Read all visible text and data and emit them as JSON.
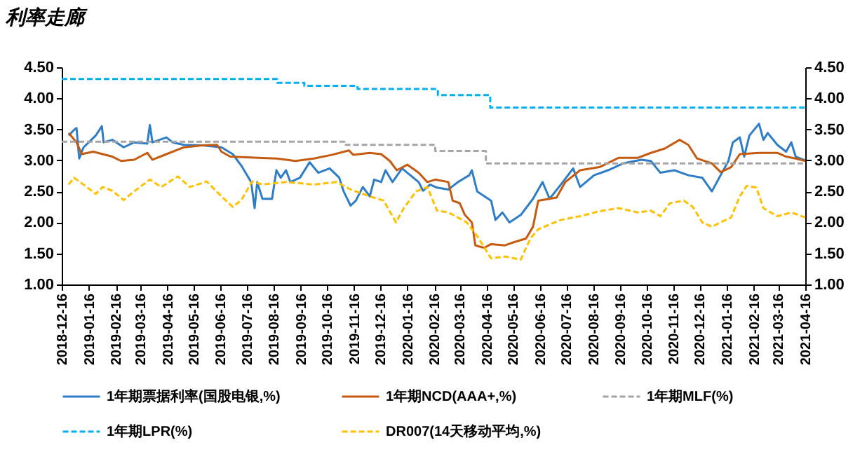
{
  "chart_data": {
    "type": "line",
    "title": "利率走廊",
    "legend": "bottom",
    "grid": false,
    "xlim": [
      "2018-12-16",
      "2021-04-16"
    ],
    "xticks": [
      "2018-12-16",
      "2019-01-16",
      "2019-02-16",
      "2019-03-16",
      "2019-04-16",
      "2019-05-16",
      "2019-06-16",
      "2019-07-16",
      "2019-08-16",
      "2019-09-16",
      "2019-10-16",
      "2019-11-16",
      "2019-12-16",
      "2020-01-16",
      "2020-02-16",
      "2020-03-16",
      "2020-04-16",
      "2020-05-16",
      "2020-06-16",
      "2020-07-16",
      "2020-08-16",
      "2020-09-16",
      "2020-10-16",
      "2020-11-16",
      "2020-12-16",
      "2021-01-16",
      "2021-02-16",
      "2021-03-16",
      "2021-04-16"
    ],
    "ylim": [
      1,
      4.5
    ],
    "yticks": [
      {
        "value": 1,
        "label": "1.00"
      },
      {
        "value": 1.5,
        "label": "1.50"
      },
      {
        "value": 2,
        "label": "2.00"
      },
      {
        "value": 2.5,
        "label": "2.50"
      },
      {
        "value": 3,
        "label": "3.00"
      },
      {
        "value": 3.5,
        "label": "3.50"
      },
      {
        "value": 4,
        "label": "4.00"
      },
      {
        "value": 4.5,
        "label": "4.50"
      }
    ],
    "y2lim": [
      1,
      4.5
    ],
    "y2ticks": [
      {
        "value": 1,
        "label": "1.00"
      },
      {
        "value": 1.5,
        "label": "1.50"
      },
      {
        "value": 2,
        "label": "2.00"
      },
      {
        "value": 2.5,
        "label": "2.50"
      },
      {
        "value": 3,
        "label": "3.00"
      },
      {
        "value": 3.5,
        "label": "3.50"
      },
      {
        "value": 4,
        "label": "4.00"
      },
      {
        "value": 4.5,
        "label": "4.50"
      }
    ],
    "series": [
      {
        "name": "1年期票据利率(国股电银,%)",
        "color": "#2e7dc6",
        "type": "line",
        "line_style": "solid",
        "x": [
          "2018-12-24",
          "2018-12-30",
          "2019-01-02",
          "2019-01-05",
          "2019-01-10",
          "2019-01-16",
          "2019-01-24",
          "2019-01-31",
          "2019-02-02",
          "2019-02-12",
          "2019-02-25",
          "2019-03-09",
          "2019-03-24",
          "2019-03-27",
          "2019-03-30",
          "2019-04-15",
          "2019-04-22",
          "2019-05-05",
          "2019-05-26",
          "2019-06-17",
          "2019-06-30",
          "2019-07-10",
          "2019-07-21",
          "2019-07-25",
          "2019-07-28",
          "2019-08-03",
          "2019-08-14",
          "2019-08-19",
          "2019-08-24",
          "2019-08-30",
          "2019-09-04",
          "2019-09-15",
          "2019-09-26",
          "2019-10-06",
          "2019-10-19",
          "2019-10-30",
          "2019-11-04",
          "2019-11-12",
          "2019-11-18",
          "2019-11-26",
          "2019-12-04",
          "2019-12-09",
          "2019-12-17",
          "2019-12-22",
          "2019-12-30",
          "2020-01-10",
          "2020-01-16",
          "2020-01-29",
          "2020-02-03",
          "2020-02-11",
          "2020-02-19",
          "2020-03-03",
          "2020-03-14",
          "2020-03-27",
          "2020-03-30",
          "2020-04-05",
          "2020-04-21",
          "2020-04-26",
          "2020-05-04",
          "2020-05-12",
          "2020-05-25",
          "2020-06-08",
          "2020-06-19",
          "2020-06-27",
          "2020-07-10",
          "2020-07-24",
          "2020-08-01",
          "2020-08-17",
          "2020-09-02",
          "2020-09-19",
          "2020-10-10",
          "2020-10-21",
          "2020-11-01",
          "2020-11-17",
          "2020-12-03",
          "2020-12-19",
          "2020-12-30",
          "2021-01-09",
          "2021-01-18",
          "2021-01-23",
          "2021-01-31",
          "2021-02-05",
          "2021-02-11",
          "2021-02-22",
          "2021-02-27",
          "2021-03-04",
          "2021-03-15",
          "2021-03-25",
          "2021-03-31",
          "2021-04-05",
          "2021-04-16"
        ],
        "values": [
          3.4,
          3.49,
          3.52,
          3.03,
          3.21,
          3.29,
          3.4,
          3.55,
          3.29,
          3.33,
          3.21,
          3.29,
          3.27,
          3.57,
          3.29,
          3.37,
          3.29,
          3.25,
          3.24,
          3.21,
          3.1,
          2.91,
          2.65,
          2.23,
          2.65,
          2.38,
          2.38,
          2.84,
          2.72,
          2.84,
          2.65,
          2.72,
          2.97,
          2.8,
          2.87,
          2.72,
          2.5,
          2.27,
          2.35,
          2.57,
          2.42,
          2.69,
          2.65,
          2.84,
          2.65,
          2.87,
          2.8,
          2.65,
          2.51,
          2.61,
          2.56,
          2.53,
          2.65,
          2.76,
          2.84,
          2.5,
          2.35,
          2.04,
          2.16,
          2.0,
          2.12,
          2.38,
          2.65,
          2.38,
          2.61,
          2.87,
          2.57,
          2.76,
          2.84,
          2.95,
          3.01,
          2.99,
          2.8,
          2.84,
          2.76,
          2.72,
          2.5,
          2.76,
          2.99,
          3.29,
          3.37,
          3.06,
          3.4,
          3.59,
          3.33,
          3.44,
          3.25,
          3.14,
          3.29,
          3.06,
          3.0
        ]
      },
      {
        "name": "1年期NCD(AAA+,%)",
        "color": "#c55a11",
        "type": "line",
        "line_style": "solid",
        "x": [
          "2018-12-24",
          "2019-01-02",
          "2019-01-08",
          "2019-01-21",
          "2019-02-12",
          "2019-02-22",
          "2019-03-09",
          "2019-03-24",
          "2019-03-30",
          "2019-04-15",
          "2019-05-05",
          "2019-05-26",
          "2019-06-12",
          "2019-06-17",
          "2019-06-27",
          "2019-07-29",
          "2019-08-19",
          "2019-09-10",
          "2019-10-01",
          "2019-10-22",
          "2019-11-10",
          "2019-11-15",
          "2019-12-04",
          "2019-12-17",
          "2019-12-27",
          "2020-01-04",
          "2020-01-16",
          "2020-01-29",
          "2020-02-08",
          "2020-02-17",
          "2020-03-03",
          "2020-03-08",
          "2020-03-16",
          "2020-03-22",
          "2020-03-30",
          "2020-04-03",
          "2020-04-13",
          "2020-04-21",
          "2020-05-07",
          "2020-05-17",
          "2020-05-31",
          "2020-06-08",
          "2020-06-14",
          "2020-07-05",
          "2020-07-15",
          "2020-08-01",
          "2020-08-23",
          "2020-09-14",
          "2020-10-06",
          "2020-10-21",
          "2020-11-06",
          "2020-11-23",
          "2020-12-03",
          "2020-12-13",
          "2020-12-30",
          "2021-01-09",
          "2021-01-21",
          "2021-01-31",
          "2021-02-22",
          "2021-03-15",
          "2021-03-25",
          "2021-04-05",
          "2021-04-16"
        ],
        "values": [
          3.44,
          3.29,
          3.1,
          3.14,
          3.06,
          2.99,
          3.01,
          3.12,
          3.01,
          3.1,
          3.21,
          3.24,
          3.25,
          3.14,
          3.06,
          3.04,
          3.03,
          2.99,
          3.03,
          3.09,
          3.16,
          3.09,
          3.12,
          3.1,
          2.99,
          2.84,
          2.93,
          2.8,
          2.65,
          2.69,
          2.65,
          2.35,
          2.31,
          2.12,
          2.0,
          1.63,
          1.59,
          1.65,
          1.63,
          1.68,
          1.74,
          1.93,
          2.35,
          2.4,
          2.65,
          2.84,
          2.89,
          3.04,
          3.04,
          3.12,
          3.19,
          3.33,
          3.25,
          3.03,
          2.95,
          2.81,
          2.89,
          3.1,
          3.12,
          3.12,
          3.06,
          3.03,
          2.99
        ]
      },
      {
        "name": "1年期MLF(%)",
        "color": "#a5a5a5",
        "type": "step",
        "line_style": "dashed",
        "x": [
          "2018-12-16",
          "2019-11-05",
          "2020-02-17",
          "2020-04-15",
          "2021-04-16"
        ],
        "values": [
          3.3,
          3.25,
          3.15,
          2.95,
          2.95
        ]
      },
      {
        "name": "1年期LPR(%)",
        "color": "#00b0f0",
        "type": "step",
        "line_style": "dashed",
        "x": [
          "2018-12-16",
          "2019-08-20",
          "2019-09-20",
          "2019-11-20",
          "2020-02-20",
          "2020-04-20",
          "2021-04-16"
        ],
        "values": [
          4.31,
          4.25,
          4.2,
          4.15,
          4.05,
          3.85,
          3.85
        ]
      },
      {
        "name": "DR007(14天移动平均,%)",
        "color": "#ffc000",
        "type": "line",
        "line_style": "dashed",
        "x": [
          "2018-12-24",
          "2018-12-30",
          "2019-01-10",
          "2019-01-24",
          "2019-02-01",
          "2019-02-12",
          "2019-02-25",
          "2019-03-09",
          "2019-03-27",
          "2019-04-09",
          "2019-04-28",
          "2019-05-12",
          "2019-05-31",
          "2019-06-17",
          "2019-06-30",
          "2019-07-10",
          "2019-07-22",
          "2019-08-03",
          "2019-08-30",
          "2019-10-01",
          "2019-10-27",
          "2019-11-12",
          "2019-12-04",
          "2019-12-20",
          "2020-01-03",
          "2020-01-12",
          "2020-01-26",
          "2020-02-08",
          "2020-02-19",
          "2020-03-03",
          "2020-03-14",
          "2020-03-24",
          "2020-04-05",
          "2020-04-21",
          "2020-05-07",
          "2020-05-25",
          "2020-06-05",
          "2020-06-14",
          "2020-07-10",
          "2020-08-01",
          "2020-08-23",
          "2020-09-14",
          "2020-10-06",
          "2020-10-21",
          "2020-11-01",
          "2020-11-12",
          "2020-11-28",
          "2020-12-08",
          "2020-12-19",
          "2020-12-30",
          "2021-01-09",
          "2021-01-21",
          "2021-01-31",
          "2021-02-08",
          "2021-02-19",
          "2021-02-27",
          "2021-03-15",
          "2021-03-31",
          "2021-04-16"
        ],
        "values": [
          2.61,
          2.72,
          2.61,
          2.46,
          2.57,
          2.51,
          2.36,
          2.5,
          2.69,
          2.57,
          2.74,
          2.57,
          2.66,
          2.42,
          2.25,
          2.36,
          2.66,
          2.61,
          2.65,
          2.61,
          2.65,
          2.53,
          2.42,
          2.35,
          2.0,
          2.23,
          2.5,
          2.57,
          2.19,
          2.16,
          2.08,
          2.0,
          1.78,
          1.42,
          1.45,
          1.4,
          1.74,
          1.89,
          2.04,
          2.1,
          2.18,
          2.23,
          2.16,
          2.19,
          2.1,
          2.31,
          2.35,
          2.25,
          2.0,
          1.93,
          2.0,
          2.08,
          2.42,
          2.59,
          2.56,
          2.23,
          2.1,
          2.16,
          2.08
        ]
      }
    ]
  }
}
